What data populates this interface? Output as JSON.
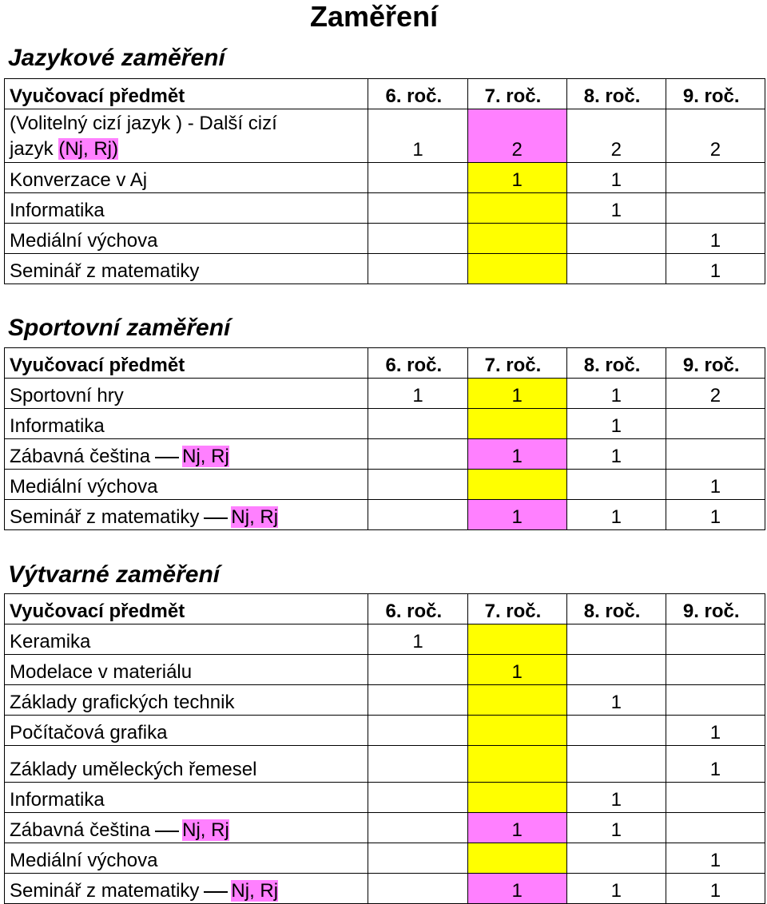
{
  "title": "Zaměření",
  "colors": {
    "yellow": "#ffff00",
    "pink": "#ff80ff"
  },
  "sections": [
    {
      "heading": "Jazykové zaměření",
      "header": [
        "Vyučovací předmět",
        "6. roč.",
        "7. roč.",
        "8. roč.",
        "9. roč."
      ],
      "rows": [
        {
          "subject_line1": "(Volitelný cizí jazyk ) - Další cizí",
          "subject_line2_prefix": "jazyk ",
          "subject_highlight": "(Nj, Rj)",
          "values": [
            "1",
            "2",
            "2",
            "2"
          ]
        },
        {
          "subject": "Konverzace v Aj",
          "values": [
            "",
            "1",
            "1",
            ""
          ]
        },
        {
          "subject": "Informatika",
          "values": [
            "",
            "",
            "1",
            ""
          ]
        },
        {
          "subject": "Mediální výchova",
          "values": [
            "",
            "",
            "",
            "1"
          ]
        },
        {
          "subject": "Seminář z matematiky",
          "values": [
            "",
            "",
            "",
            "1"
          ]
        }
      ]
    },
    {
      "heading": "Sportovní zaměření",
      "header": [
        "Vyučovací předmět",
        "6. roč.",
        "7. roč.",
        "8. roč.",
        "9. roč."
      ],
      "rows": [
        {
          "subject": "Sportovní hry",
          "values": [
            "1",
            "1",
            "1",
            "2"
          ]
        },
        {
          "subject": "Informatika",
          "values": [
            "",
            "",
            "1",
            ""
          ]
        },
        {
          "subject": "Zábavná čeština",
          "subject_highlight": "Nj, Rj",
          "values": [
            "",
            "1",
            "1",
            ""
          ]
        },
        {
          "subject": "Mediální výchova",
          "values": [
            "",
            "",
            "",
            "1"
          ]
        },
        {
          "subject": "Seminář z matematiky",
          "subject_highlight": "Nj, Rj",
          "values": [
            "",
            "1",
            "1",
            "1"
          ]
        }
      ]
    },
    {
      "heading": "Výtvarné zaměření",
      "header": [
        "Vyučovací předmět",
        "6. roč.",
        "7. roč.",
        "8. roč.",
        "9. roč."
      ],
      "rows": [
        {
          "subject": "Keramika",
          "values": [
            "1",
            "",
            "",
            ""
          ]
        },
        {
          "subject": "Modelace v materiálu",
          "values": [
            "",
            "1",
            "",
            ""
          ]
        },
        {
          "subject": "Základy grafických technik",
          "values": [
            "",
            "",
            "1",
            ""
          ]
        },
        {
          "subject": "Počítačová grafika",
          "values": [
            "",
            "",
            "",
            "1"
          ]
        },
        {
          "subject": "Základy uměleckých řemesel",
          "values": [
            "",
            "",
            "",
            "1"
          ]
        },
        {
          "subject": "Informatika",
          "values": [
            "",
            "",
            "1",
            ""
          ]
        },
        {
          "subject": "Zábavná čeština",
          "subject_highlight": "Nj, Rj",
          "values": [
            "",
            "1",
            "1",
            ""
          ]
        },
        {
          "subject": "Mediální výchova",
          "values": [
            "",
            "",
            "",
            "1"
          ]
        },
        {
          "subject": "Seminář z matematiky",
          "subject_highlight": "Nj, Rj",
          "values": [
            "",
            "1",
            "1",
            "1"
          ]
        }
      ]
    }
  ]
}
